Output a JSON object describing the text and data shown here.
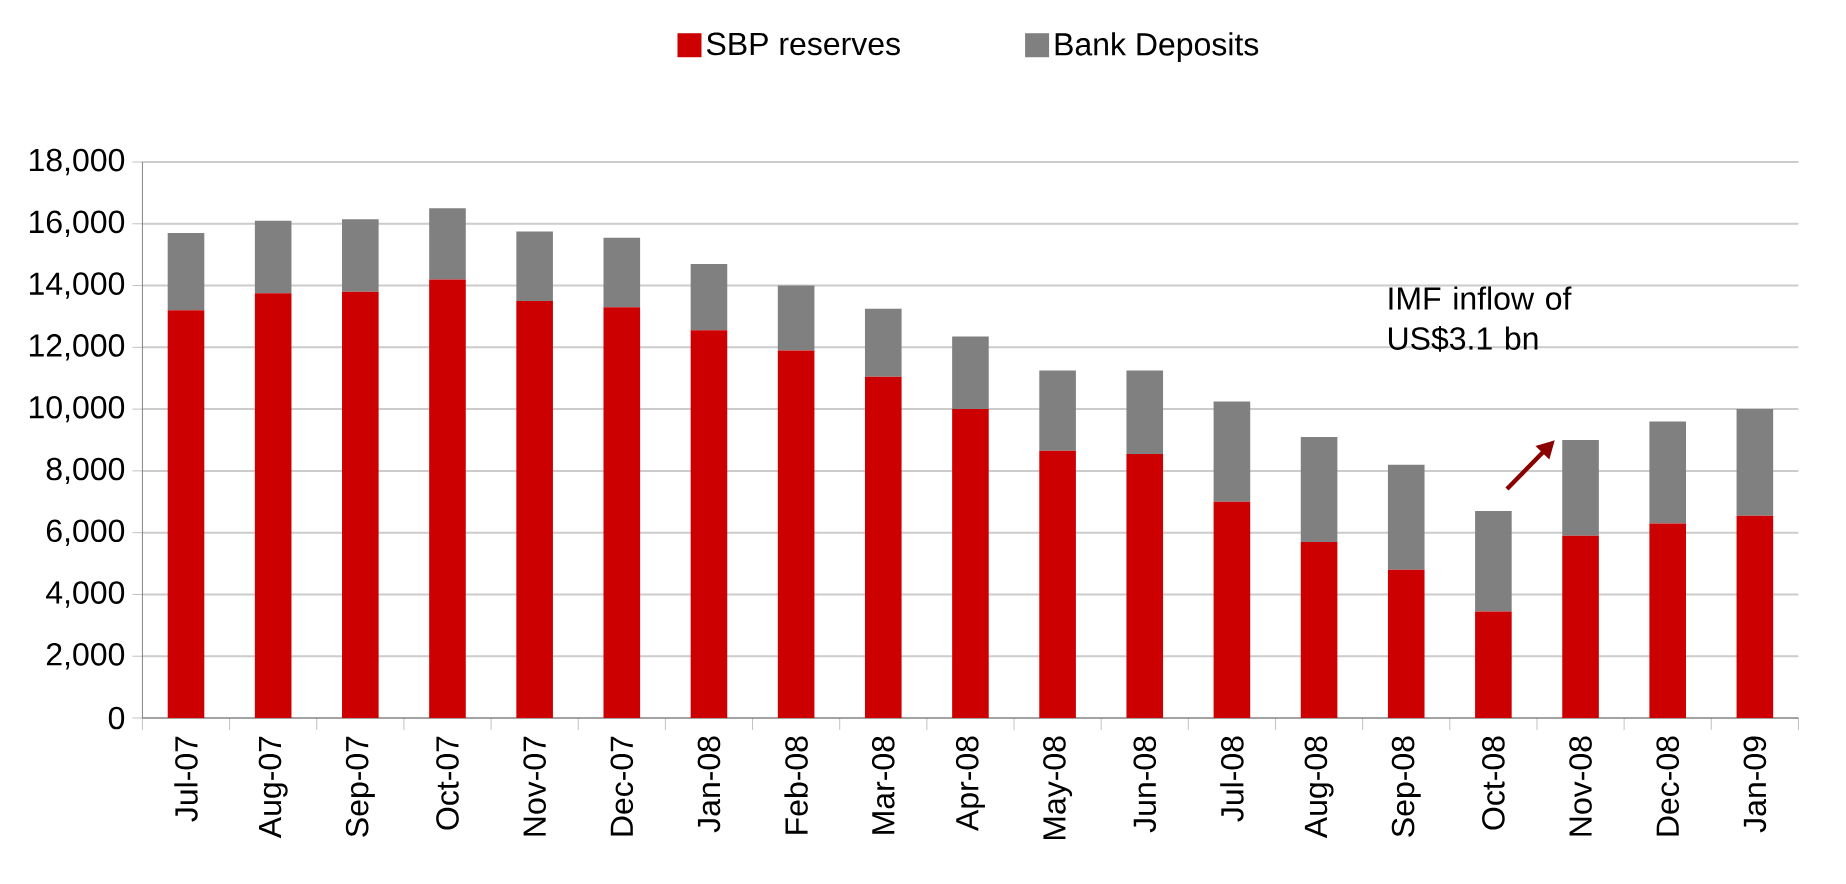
{
  "chart_data": {
    "type": "bar",
    "stacked": true,
    "categories": [
      "Jul-07",
      "Aug-07",
      "Sep-07",
      "Oct-07",
      "Nov-07",
      "Dec-07",
      "Jan-08",
      "Feb-08",
      "Mar-08",
      "Apr-08",
      "May-08",
      "Jun-08",
      "Jul-08",
      "Aug-08",
      "Sep-08",
      "Oct-08",
      "Nov-08",
      "Dec-08",
      "Jan-09"
    ],
    "series": [
      {
        "name": "SBP reserves",
        "color": "#cc0000",
        "values": [
          13200,
          13750,
          13800,
          14200,
          13500,
          13300,
          12550,
          11900,
          11050,
          10000,
          8650,
          8550,
          7000,
          5700,
          4800,
          3450,
          5900,
          6300,
          6550
        ]
      },
      {
        "name": "Bank Deposits",
        "color": "#808080",
        "values": [
          2500,
          2350,
          2350,
          2300,
          2250,
          2250,
          2150,
          2100,
          2200,
          2350,
          2600,
          2700,
          3250,
          3400,
          3400,
          3250,
          3100,
          3300,
          3450
        ]
      }
    ],
    "ylim": [
      0,
      18000
    ],
    "yticks": [
      0,
      {
        "value": 2000,
        "label": "2,000"
      },
      {
        "value": 4000,
        "label": "4,000"
      },
      {
        "value": 6000,
        "label": "6,000"
      },
      {
        "value": 8000,
        "label": "8,000"
      },
      {
        "value": 10000,
        "label": "10,000"
      },
      {
        "value": 12000,
        "label": "12,000"
      },
      {
        "value": 14000,
        "label": "14,000"
      },
      {
        "value": 16000,
        "label": "16,000"
      },
      {
        "value": 18000,
        "label": "18,000"
      }
    ],
    "grid": "y",
    "legend": "top",
    "annotations": [
      "IMF inflow of US$3.1 bn"
    ]
  }
}
